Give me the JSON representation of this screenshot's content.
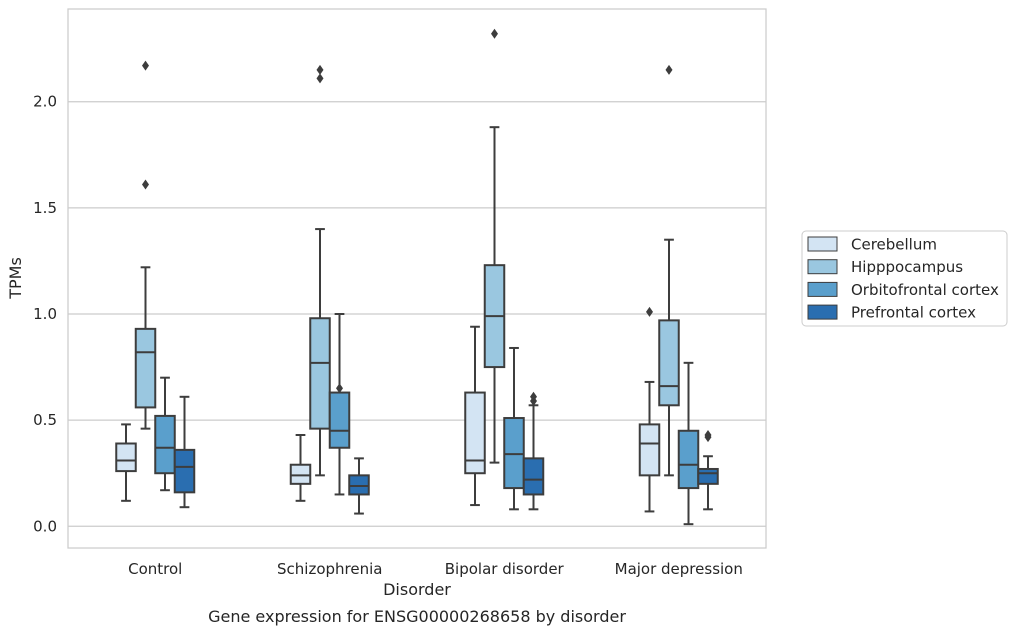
{
  "caption": "Gene expression for ENSG00000268658 by disorder",
  "chart_data": {
    "type": "box",
    "title": "",
    "xlabel": "Disorder",
    "ylabel": "TPMs",
    "ylim": [
      -0.1,
      2.45
    ],
    "yticks": [
      0.0,
      0.5,
      1.0,
      1.5,
      2.0
    ],
    "ytick_labels": [
      "0.0",
      "0.5",
      "1.0",
      "1.5",
      "2.0"
    ],
    "grid": "horizontal",
    "legend_position": "right",
    "categories": [
      "Control",
      "Schizophrenia",
      "Bipolar disorder",
      "Major depression"
    ],
    "series": [
      {
        "name": "Cerebellum",
        "color": "#d3e4f3",
        "boxes": [
          {
            "whisker_low": 0.12,
            "q1": 0.26,
            "median": 0.31,
            "q3": 0.39,
            "whisker_high": 0.48,
            "outliers": []
          },
          {
            "whisker_low": 0.12,
            "q1": 0.2,
            "median": 0.24,
            "q3": 0.29,
            "whisker_high": 0.43,
            "outliers": []
          },
          {
            "whisker_low": 0.1,
            "q1": 0.25,
            "median": 0.31,
            "q3": 0.63,
            "whisker_high": 0.94,
            "outliers": []
          },
          {
            "whisker_low": 0.07,
            "q1": 0.24,
            "median": 0.39,
            "q3": 0.48,
            "whisker_high": 0.68,
            "outliers": [
              1.01
            ]
          }
        ]
      },
      {
        "name": "Hipppocampus",
        "color": "#9ac7e0",
        "boxes": [
          {
            "whisker_low": 0.46,
            "q1": 0.56,
            "median": 0.82,
            "q3": 0.93,
            "whisker_high": 1.22,
            "outliers": [
              1.61,
              2.17
            ]
          },
          {
            "whisker_low": 0.24,
            "q1": 0.46,
            "median": 0.77,
            "q3": 0.98,
            "whisker_high": 1.4,
            "outliers": [
              2.11,
              2.15
            ]
          },
          {
            "whisker_low": 0.3,
            "q1": 0.75,
            "median": 0.99,
            "q3": 1.23,
            "whisker_high": 1.88,
            "outliers": [
              2.32
            ]
          },
          {
            "whisker_low": 0.24,
            "q1": 0.57,
            "median": 0.66,
            "q3": 0.97,
            "whisker_high": 1.35,
            "outliers": [
              2.15
            ]
          }
        ]
      },
      {
        "name": "Orbitofrontal cortex",
        "color": "#5a9fcc",
        "boxes": [
          {
            "whisker_low": 0.17,
            "q1": 0.25,
            "median": 0.37,
            "q3": 0.52,
            "whisker_high": 0.7,
            "outliers": []
          },
          {
            "whisker_low": 0.15,
            "q1": 0.37,
            "median": 0.45,
            "q3": 0.63,
            "whisker_high": 1.0,
            "outliers": [
              0.65
            ]
          },
          {
            "whisker_low": 0.08,
            "q1": 0.18,
            "median": 0.34,
            "q3": 0.51,
            "whisker_high": 0.84,
            "outliers": []
          },
          {
            "whisker_low": 0.01,
            "q1": 0.18,
            "median": 0.29,
            "q3": 0.45,
            "whisker_high": 0.77,
            "outliers": []
          }
        ]
      },
      {
        "name": "Prefrontal cortex",
        "color": "#2a6eb0",
        "boxes": [
          {
            "whisker_low": 0.09,
            "q1": 0.16,
            "median": 0.28,
            "q3": 0.36,
            "whisker_high": 0.61,
            "outliers": []
          },
          {
            "whisker_low": 0.06,
            "q1": 0.15,
            "median": 0.19,
            "q3": 0.24,
            "whisker_high": 0.32,
            "outliers": []
          },
          {
            "whisker_low": 0.08,
            "q1": 0.15,
            "median": 0.22,
            "q3": 0.32,
            "whisker_high": 0.57,
            "outliers": [
              0.59,
              0.61
            ]
          },
          {
            "whisker_low": 0.08,
            "q1": 0.2,
            "median": 0.25,
            "q3": 0.27,
            "whisker_high": 0.33,
            "outliers": [
              0.42,
              0.43
            ]
          }
        ]
      }
    ]
  }
}
